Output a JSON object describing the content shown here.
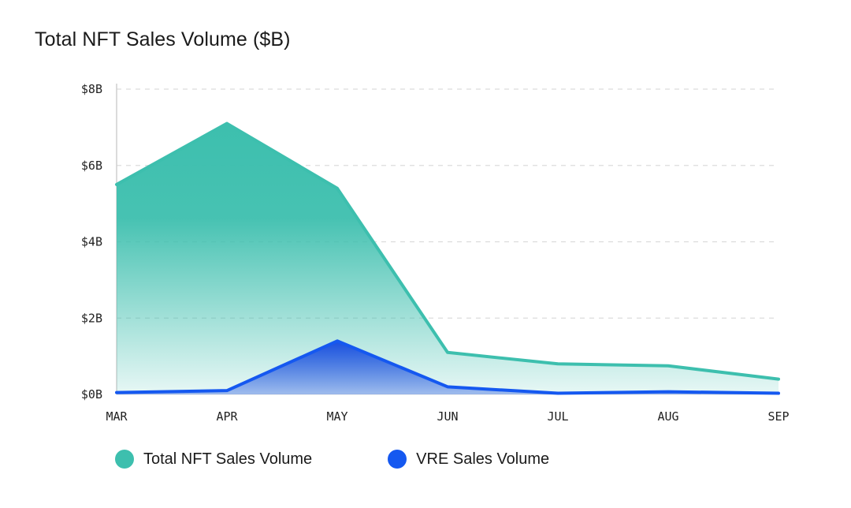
{
  "chart_data": {
    "type": "area",
    "title": "Total NFT Sales Volume ($B)",
    "categories": [
      "MAR",
      "APR",
      "MAY",
      "JUN",
      "JUL",
      "AUG",
      "SEP"
    ],
    "y_ticks": [
      "$0B",
      "$2B",
      "$4B",
      "$6B",
      "$8B"
    ],
    "ylim": [
      0,
      8
    ],
    "grid": true,
    "legend_position": "bottom-left",
    "series": [
      {
        "name": "Total NFT Sales Volume",
        "color": "#3dbfae",
        "values": [
          5.5,
          7.1,
          5.4,
          1.1,
          0.8,
          0.75,
          0.4
        ]
      },
      {
        "name": "VRE Sales Volume",
        "color": "#1558f0",
        "values": [
          0.05,
          0.1,
          1.4,
          0.2,
          0.03,
          0.07,
          0.03
        ]
      }
    ]
  }
}
